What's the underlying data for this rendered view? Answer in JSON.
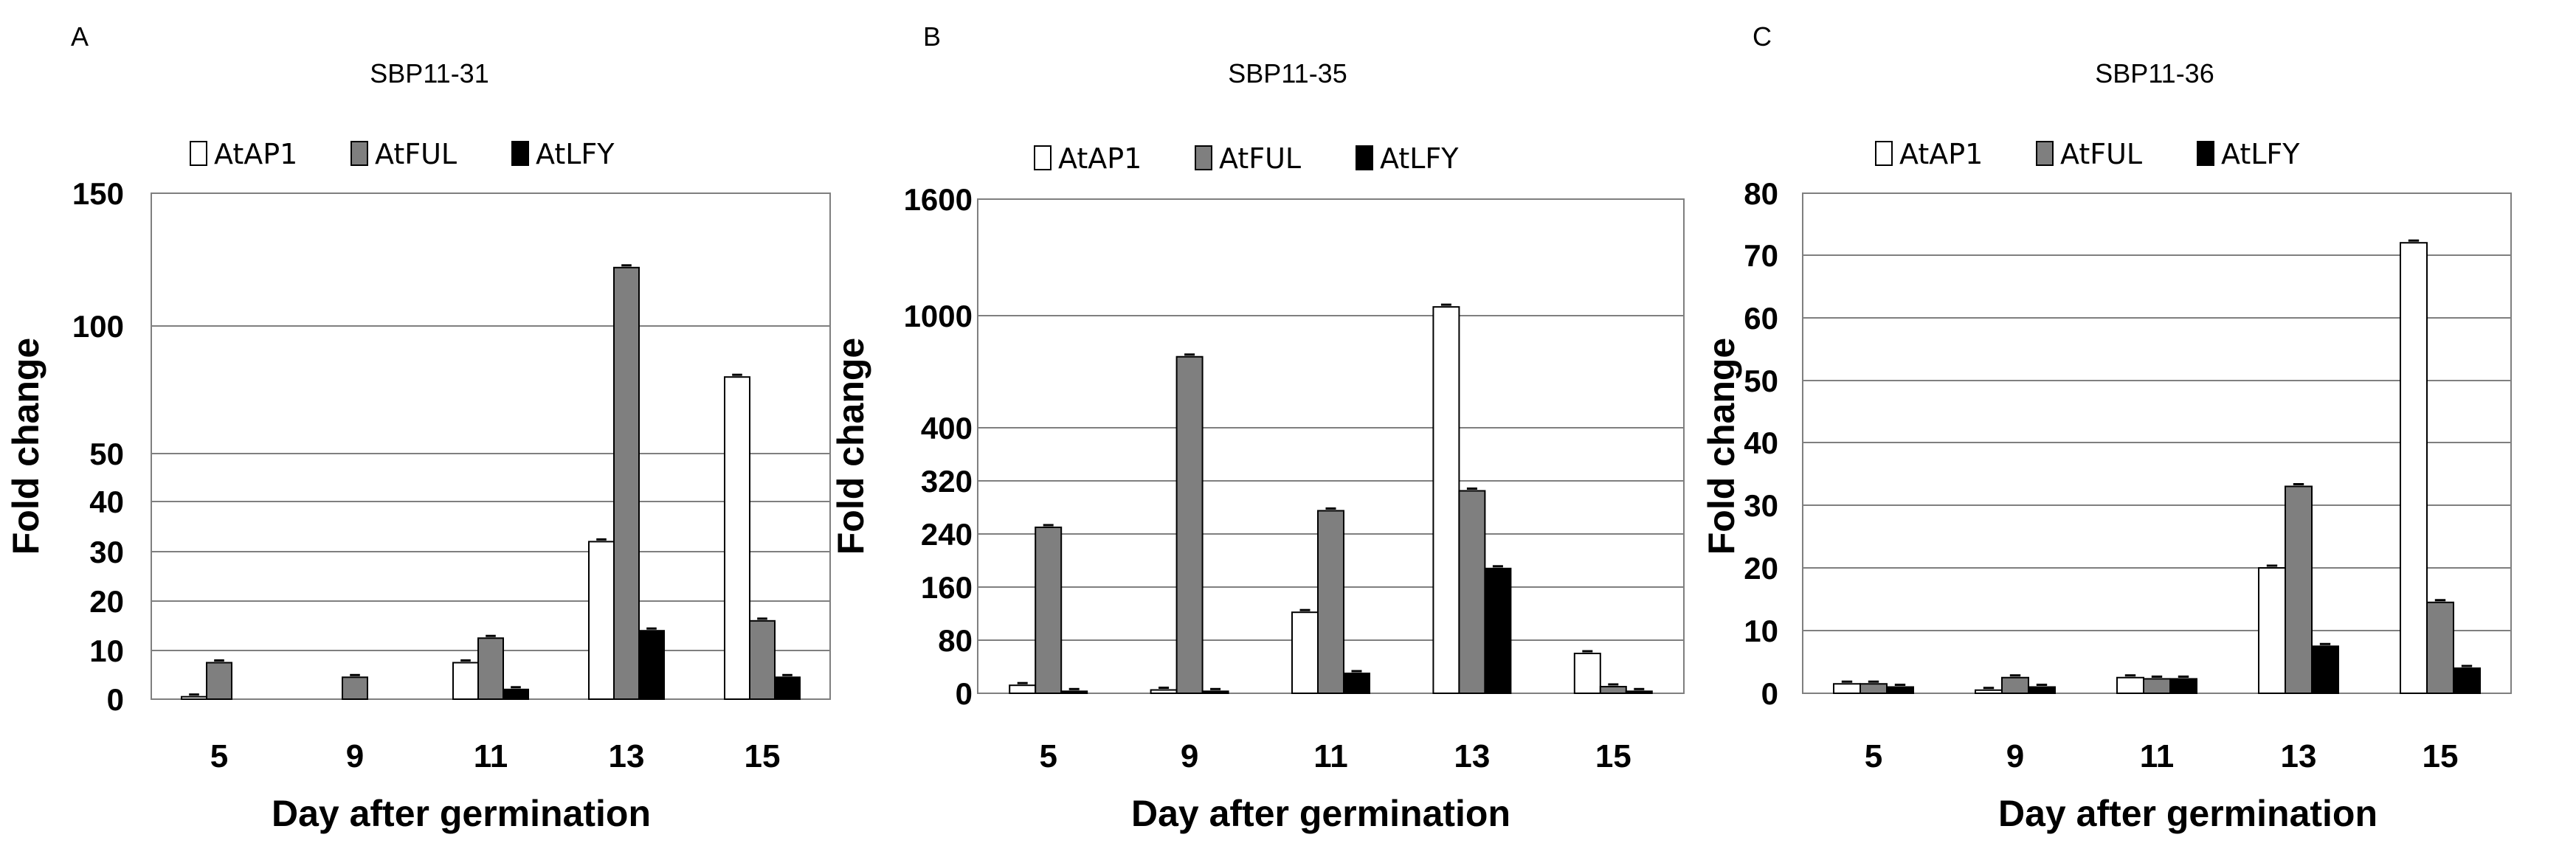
{
  "figure_label": "Fold change of AtAP1, AtFUL and AtLFY in SBP11 lines",
  "colors": {
    "AtAP1": "#ffffff",
    "AtFUL": "#7f7f7f",
    "AtLFY": "#000000",
    "grid": "#7f7f7f"
  },
  "chart_data": [
    {
      "panel_label": "A",
      "type": "bar",
      "title": "SBP11-31",
      "xlabel": "Day after germination",
      "ylabel": "Fold change",
      "categories": [
        "5",
        "9",
        "11",
        "13",
        "15"
      ],
      "y_ticks": [
        {
          "label": "0",
          "value": 0
        },
        {
          "label": "10",
          "value": 10
        },
        {
          "label": "20",
          "value": 20
        },
        {
          "label": "30",
          "value": 30
        },
        {
          "label": "40",
          "value": 40
        },
        {
          "label": "50",
          "value": 50
        },
        {
          "label": "100",
          "value": 100
        },
        {
          "label": "150",
          "value": 150
        }
      ],
      "axis_scale": "piecewise-linear (broken axis)",
      "legend": [
        "AtAP1",
        "AtFUL",
        "AtLFY"
      ],
      "series": [
        {
          "name": "AtAP1",
          "values": [
            0.5,
            0,
            7.5,
            32,
            80
          ]
        },
        {
          "name": "AtFUL",
          "values": [
            7.5,
            4.5,
            12.5,
            122,
            16
          ]
        },
        {
          "name": "AtLFY",
          "values": [
            0,
            0,
            2,
            14,
            4.5
          ]
        }
      ]
    },
    {
      "panel_label": "B",
      "type": "bar",
      "title": "SBP11-35",
      "xlabel": "Day after germination",
      "ylabel": "Fold change",
      "categories": [
        "5",
        "9",
        "11",
        "13",
        "15"
      ],
      "y_ticks": [
        {
          "label": "0",
          "value": 0
        },
        {
          "label": "80",
          "value": 80
        },
        {
          "label": "160",
          "value": 160
        },
        {
          "label": "240",
          "value": 240
        },
        {
          "label": "320",
          "value": 320
        },
        {
          "label": "400",
          "value": 400
        },
        {
          "label": "1000",
          "value": 1000
        },
        {
          "label": "1600",
          "value": 1600
        }
      ],
      "axis_scale": "piecewise-linear (broken axis)",
      "legend": [
        "AtAP1",
        "AtFUL",
        "AtLFY"
      ],
      "series": [
        {
          "name": "AtAP1",
          "values": [
            12,
            5,
            122,
            1045,
            60
          ]
        },
        {
          "name": "AtFUL",
          "values": [
            250,
            780,
            275,
            305,
            10
          ]
        },
        {
          "name": "AtLFY",
          "values": [
            3,
            3,
            30,
            188,
            3
          ]
        }
      ]
    },
    {
      "panel_label": "C",
      "type": "bar",
      "title": "SBP11-36",
      "xlabel": "Day after germination",
      "ylabel": "Fold change",
      "categories": [
        "5",
        "9",
        "11",
        "13",
        "15"
      ],
      "y_ticks": [
        {
          "label": "0",
          "value": 0
        },
        {
          "label": "10",
          "value": 10
        },
        {
          "label": "20",
          "value": 20
        },
        {
          "label": "30",
          "value": 30
        },
        {
          "label": "40",
          "value": 40
        },
        {
          "label": "50",
          "value": 50
        },
        {
          "label": "60",
          "value": 60
        },
        {
          "label": "70",
          "value": 70
        },
        {
          "label": "80",
          "value": 80
        }
      ],
      "axis_scale": "linear",
      "legend": [
        "AtAP1",
        "AtFUL",
        "AtLFY"
      ],
      "series": [
        {
          "name": "AtAP1",
          "values": [
            1.5,
            0.5,
            2.5,
            20,
            72
          ]
        },
        {
          "name": "AtFUL",
          "values": [
            1.5,
            2.5,
            2.3,
            33,
            14.5
          ]
        },
        {
          "name": "AtLFY",
          "values": [
            1,
            1,
            2.3,
            7.5,
            4
          ]
        }
      ]
    }
  ]
}
